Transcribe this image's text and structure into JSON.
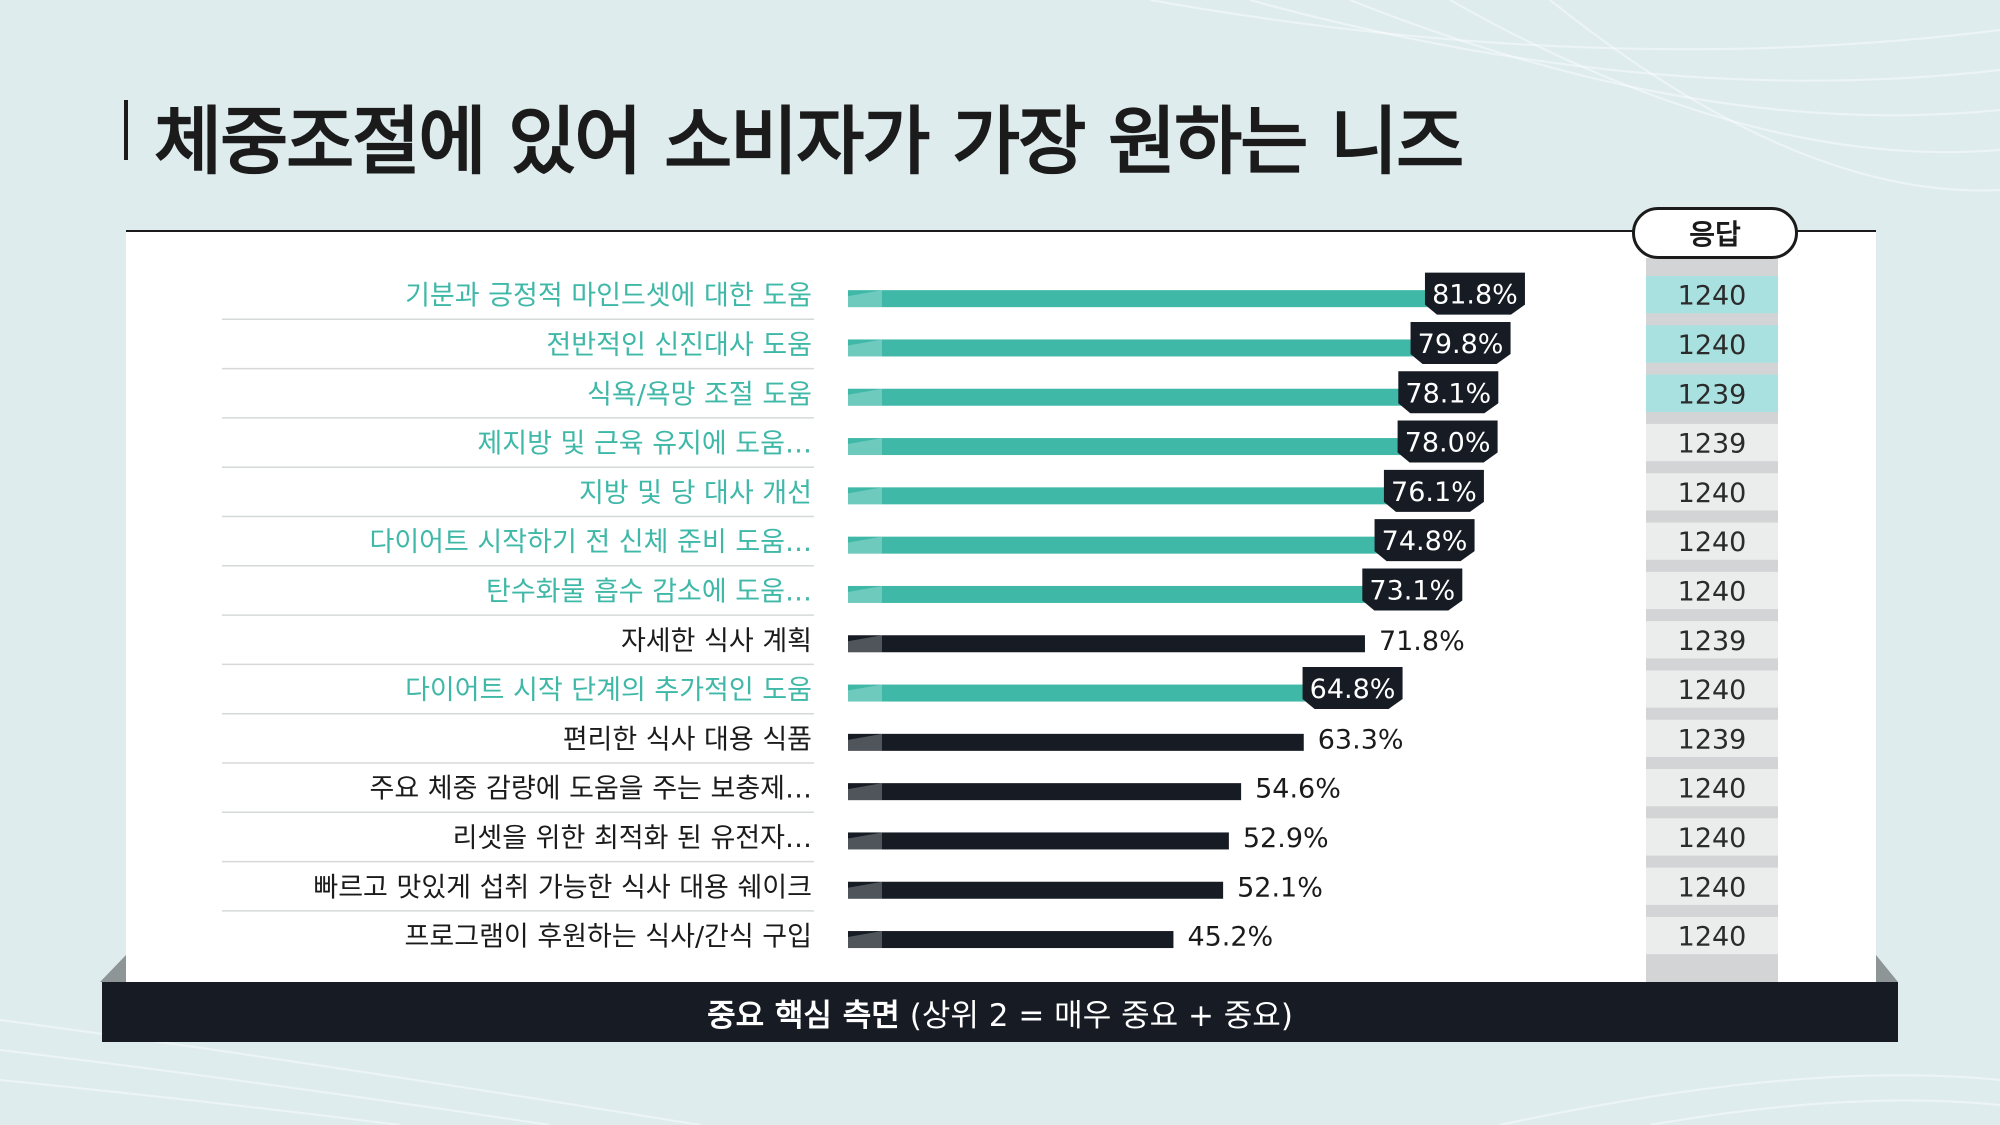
{
  "title": "체중조절에 있어 소비자가 가장 원하는 니즈",
  "response_header": "응답",
  "footer": {
    "bold": "중요 핵심 측면",
    "normal": "(상위 2 = 매우 중요 + 중요)"
  },
  "colors": {
    "highlight": "#3fb8a8",
    "dark": "#161b24",
    "highlight_response": "#a9e1e1",
    "response_column": "#d2d4d5"
  },
  "chart_data": {
    "type": "bar",
    "orientation": "horizontal",
    "unit": "%",
    "xlim": [
      0,
      100
    ],
    "categories": [
      "기분과 긍정적 마인드셋에 대한 도움",
      "전반적인 신진대사 도움",
      "식욕/욕망 조절 도움",
      "제지방 및 근육 유지에 도움…",
      "지방 및 당 대사 개선",
      "다이어트 시작하기 전  신체 준비 도움…",
      "탄수화물 흡수 감소에 도움…",
      "자세한 식사 계획",
      "다이어트 시작 단계의 추가적인 도움",
      "편리한 식사 대용 식품",
      "주요 체중 감량에 도움을 주는 보충제…",
      "리셋을 위한 최적화 된 유전자…",
      "빠르고 맛있게 섭취 가능한 식사 대용 쉐이크",
      "프로그램이 후원하는 식사/간식 구입"
    ],
    "values": [
      81.8,
      79.8,
      78.1,
      78.0,
      76.1,
      74.8,
      73.1,
      71.8,
      64.8,
      63.3,
      54.6,
      52.9,
      52.1,
      45.2
    ],
    "value_labels": [
      "81.8%",
      "79.8%",
      "78.1%",
      "78.0%",
      "76.1%",
      "74.8%",
      "73.1%",
      "71.8%",
      "64.8%",
      "63.3%",
      "54.6%",
      "52.9%",
      "52.1%",
      "45.2%"
    ],
    "highlighted": [
      true,
      true,
      true,
      true,
      true,
      true,
      true,
      false,
      true,
      false,
      false,
      false,
      false,
      false
    ],
    "responses": [
      "1240",
      "1240",
      "1239",
      "1239",
      "1240",
      "1240",
      "1240",
      "1239",
      "1240",
      "1239",
      "1240",
      "1240",
      "1240",
      "1240"
    ],
    "response_highlighted": [
      true,
      true,
      true,
      false,
      false,
      false,
      false,
      false,
      false,
      false,
      false,
      false,
      false,
      false
    ]
  }
}
